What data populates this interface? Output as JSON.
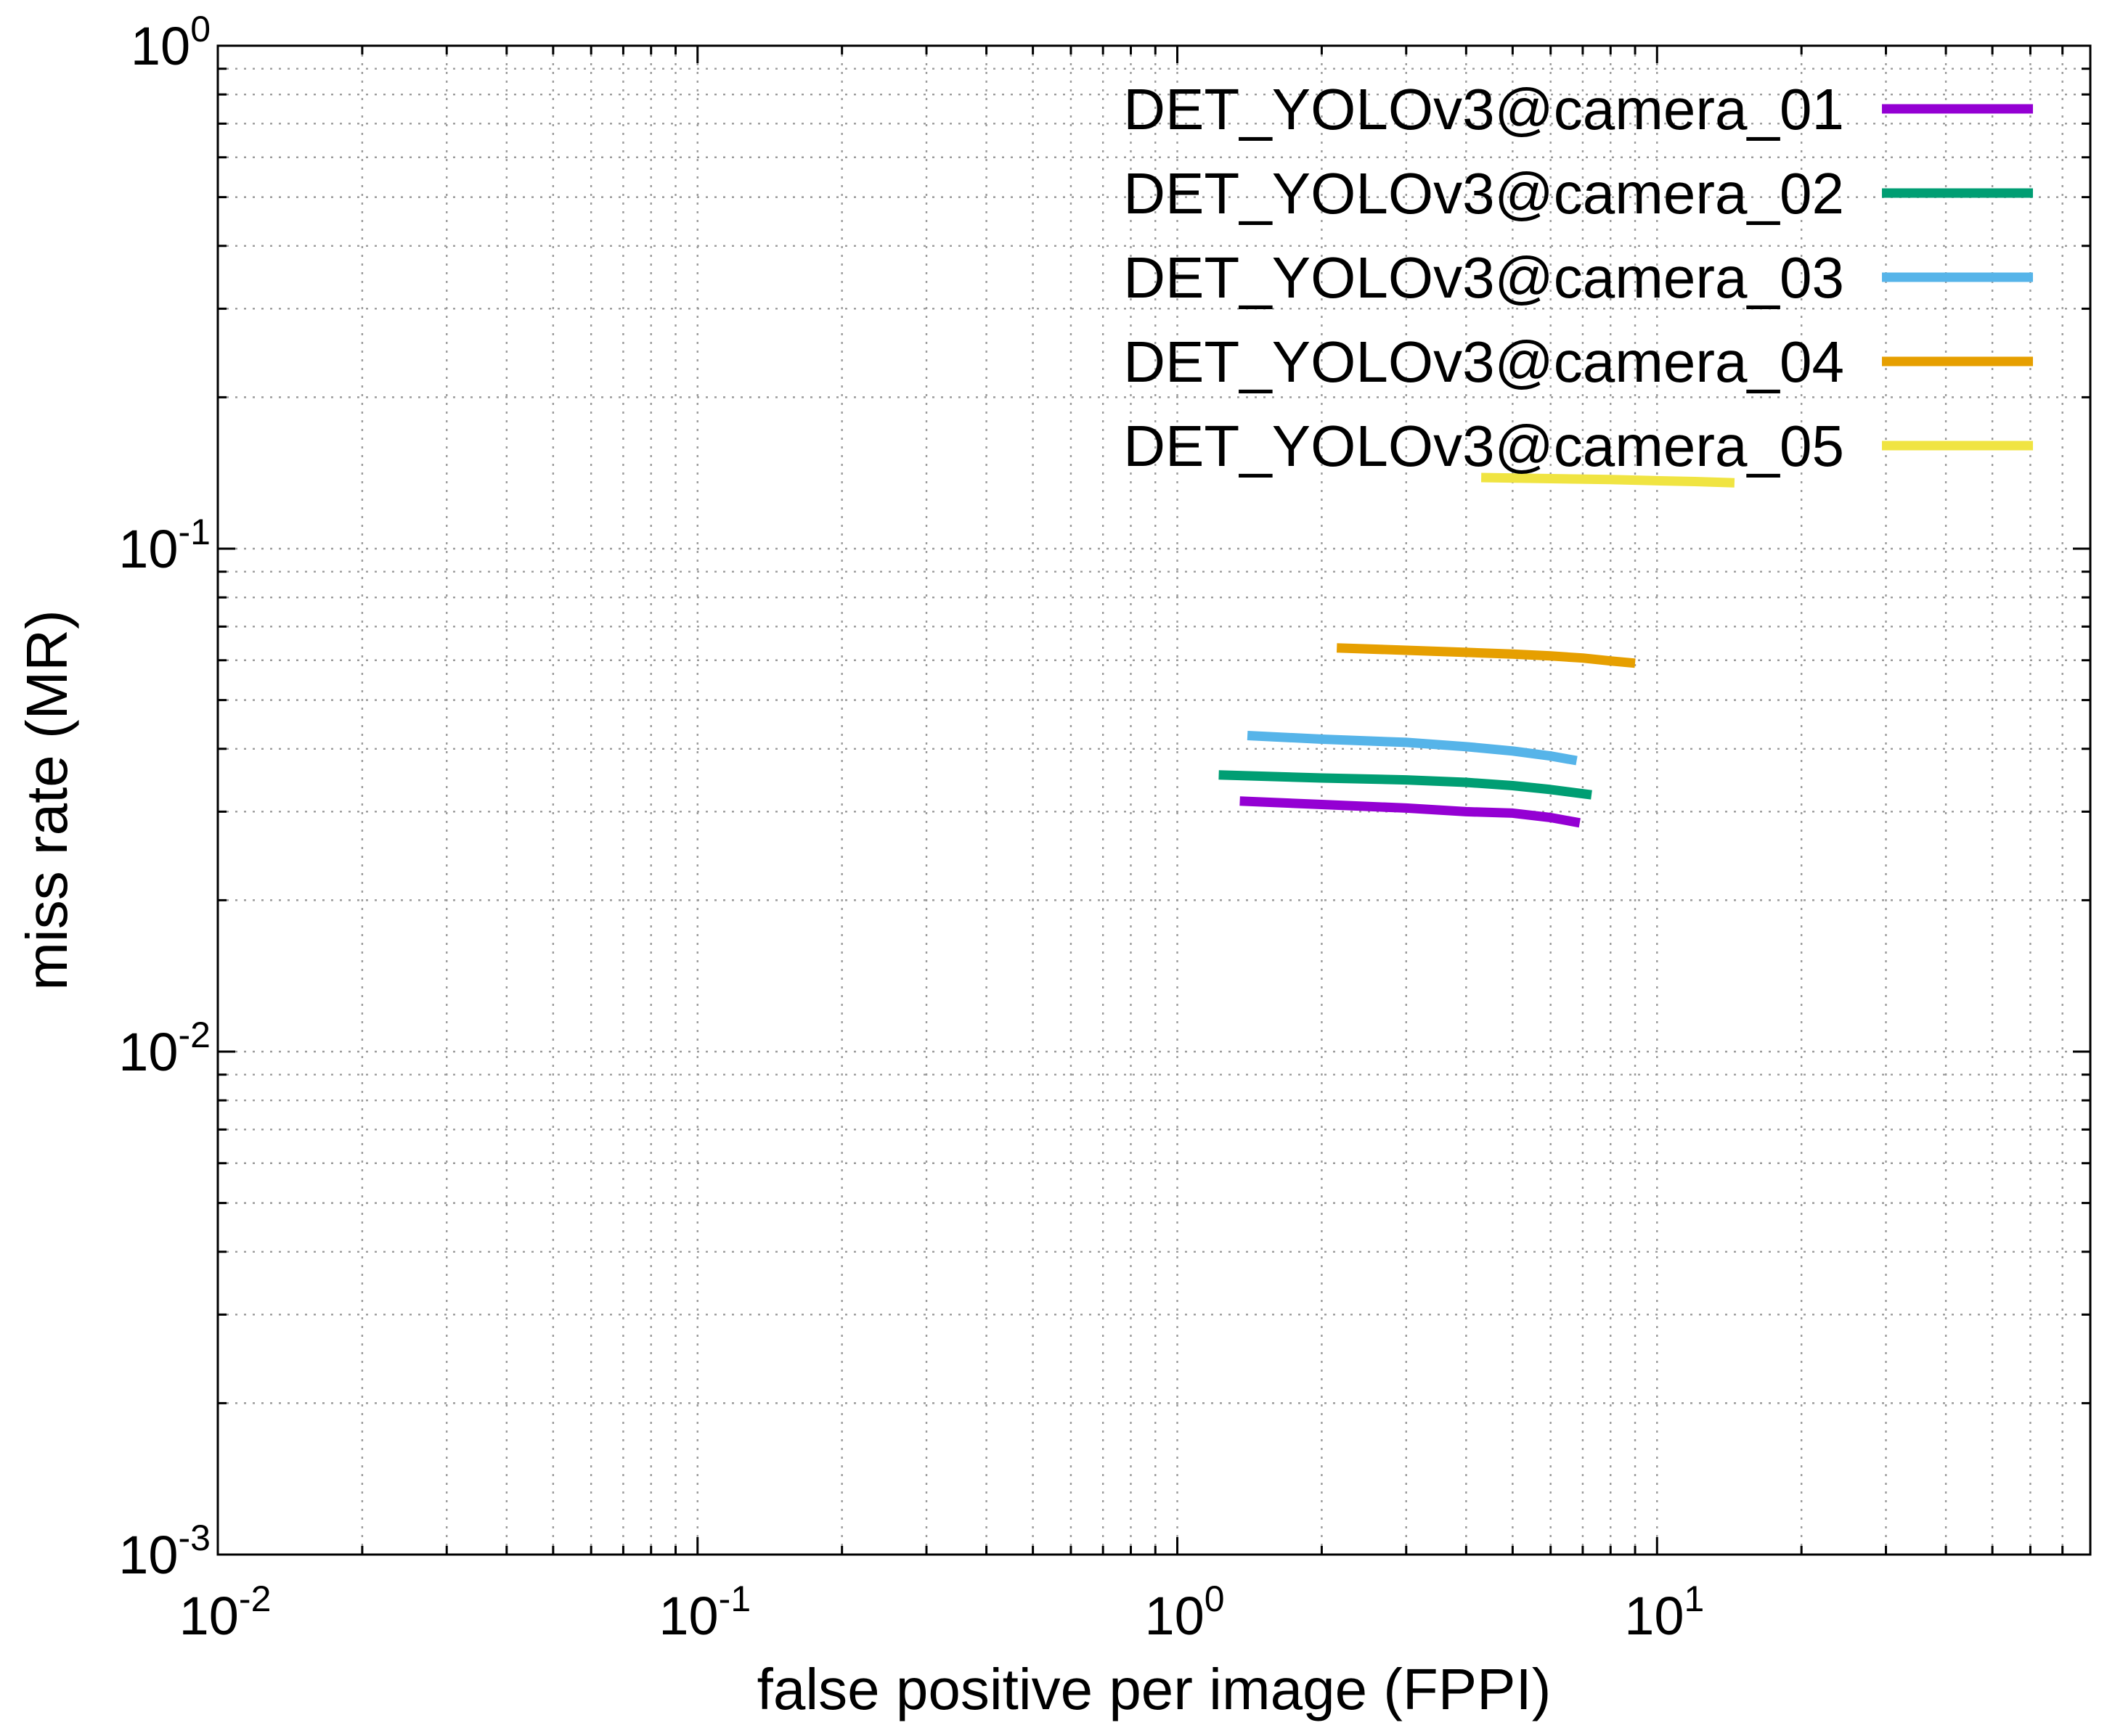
{
  "chart_data": {
    "type": "line",
    "title": "",
    "xlabel": "false positive per image (FPPI)",
    "ylabel": "miss rate (MR)",
    "xscale": "log",
    "yscale": "log",
    "xlim": [
      0.01,
      80
    ],
    "ylim": [
      0.001,
      1
    ],
    "grid": true,
    "legend_position": "top-right",
    "x_ticks": [
      {
        "base": "10",
        "exp": "-2",
        "value": 0.01
      },
      {
        "base": "10",
        "exp": "-1",
        "value": 0.1
      },
      {
        "base": "10",
        "exp": "0",
        "value": 1
      },
      {
        "base": "10",
        "exp": "1",
        "value": 10
      }
    ],
    "y_ticks": [
      {
        "base": "10",
        "exp": "0",
        "value": 1
      },
      {
        "base": "10",
        "exp": "-1",
        "value": 0.1
      },
      {
        "base": "10",
        "exp": "-2",
        "value": 0.01
      },
      {
        "base": "10",
        "exp": "-3",
        "value": 0.001
      }
    ],
    "series": [
      {
        "name": "DET_YOLOv3@camera_01",
        "color": "#9400d3",
        "x": [
          1.35,
          2.0,
          3.0,
          4.0,
          5.0,
          6.0,
          6.9
        ],
        "y": [
          0.0315,
          0.031,
          0.0305,
          0.03,
          0.0298,
          0.0292,
          0.0285
        ]
      },
      {
        "name": "DET_YOLOv3@camera_02",
        "color": "#009e73",
        "x": [
          1.22,
          2.0,
          3.0,
          4.0,
          5.0,
          6.0,
          7.3
        ],
        "y": [
          0.0355,
          0.035,
          0.0347,
          0.0343,
          0.0338,
          0.0332,
          0.0324
        ]
      },
      {
        "name": "DET_YOLOv3@camera_03",
        "color": "#56b4e9",
        "x": [
          1.4,
          2.0,
          3.0,
          4.0,
          5.0,
          6.0,
          6.8
        ],
        "y": [
          0.0425,
          0.0418,
          0.0412,
          0.0404,
          0.0396,
          0.0387,
          0.0379
        ]
      },
      {
        "name": "DET_YOLOv3@camera_04",
        "color": "#e69f00",
        "x": [
          2.15,
          3.0,
          4.0,
          5.0,
          6.0,
          7.0,
          8.0,
          9.0
        ],
        "y": [
          0.0635,
          0.0628,
          0.0622,
          0.0617,
          0.0612,
          0.0606,
          0.0598,
          0.0592
        ]
      },
      {
        "name": "DET_YOLOv3@camera_05",
        "color": "#f0e442",
        "x": [
          4.3,
          6.0,
          8.0,
          10.0,
          12.0,
          14.5
        ],
        "y": [
          0.1385,
          0.1378,
          0.1372,
          0.1365,
          0.136,
          0.1352
        ]
      }
    ]
  }
}
